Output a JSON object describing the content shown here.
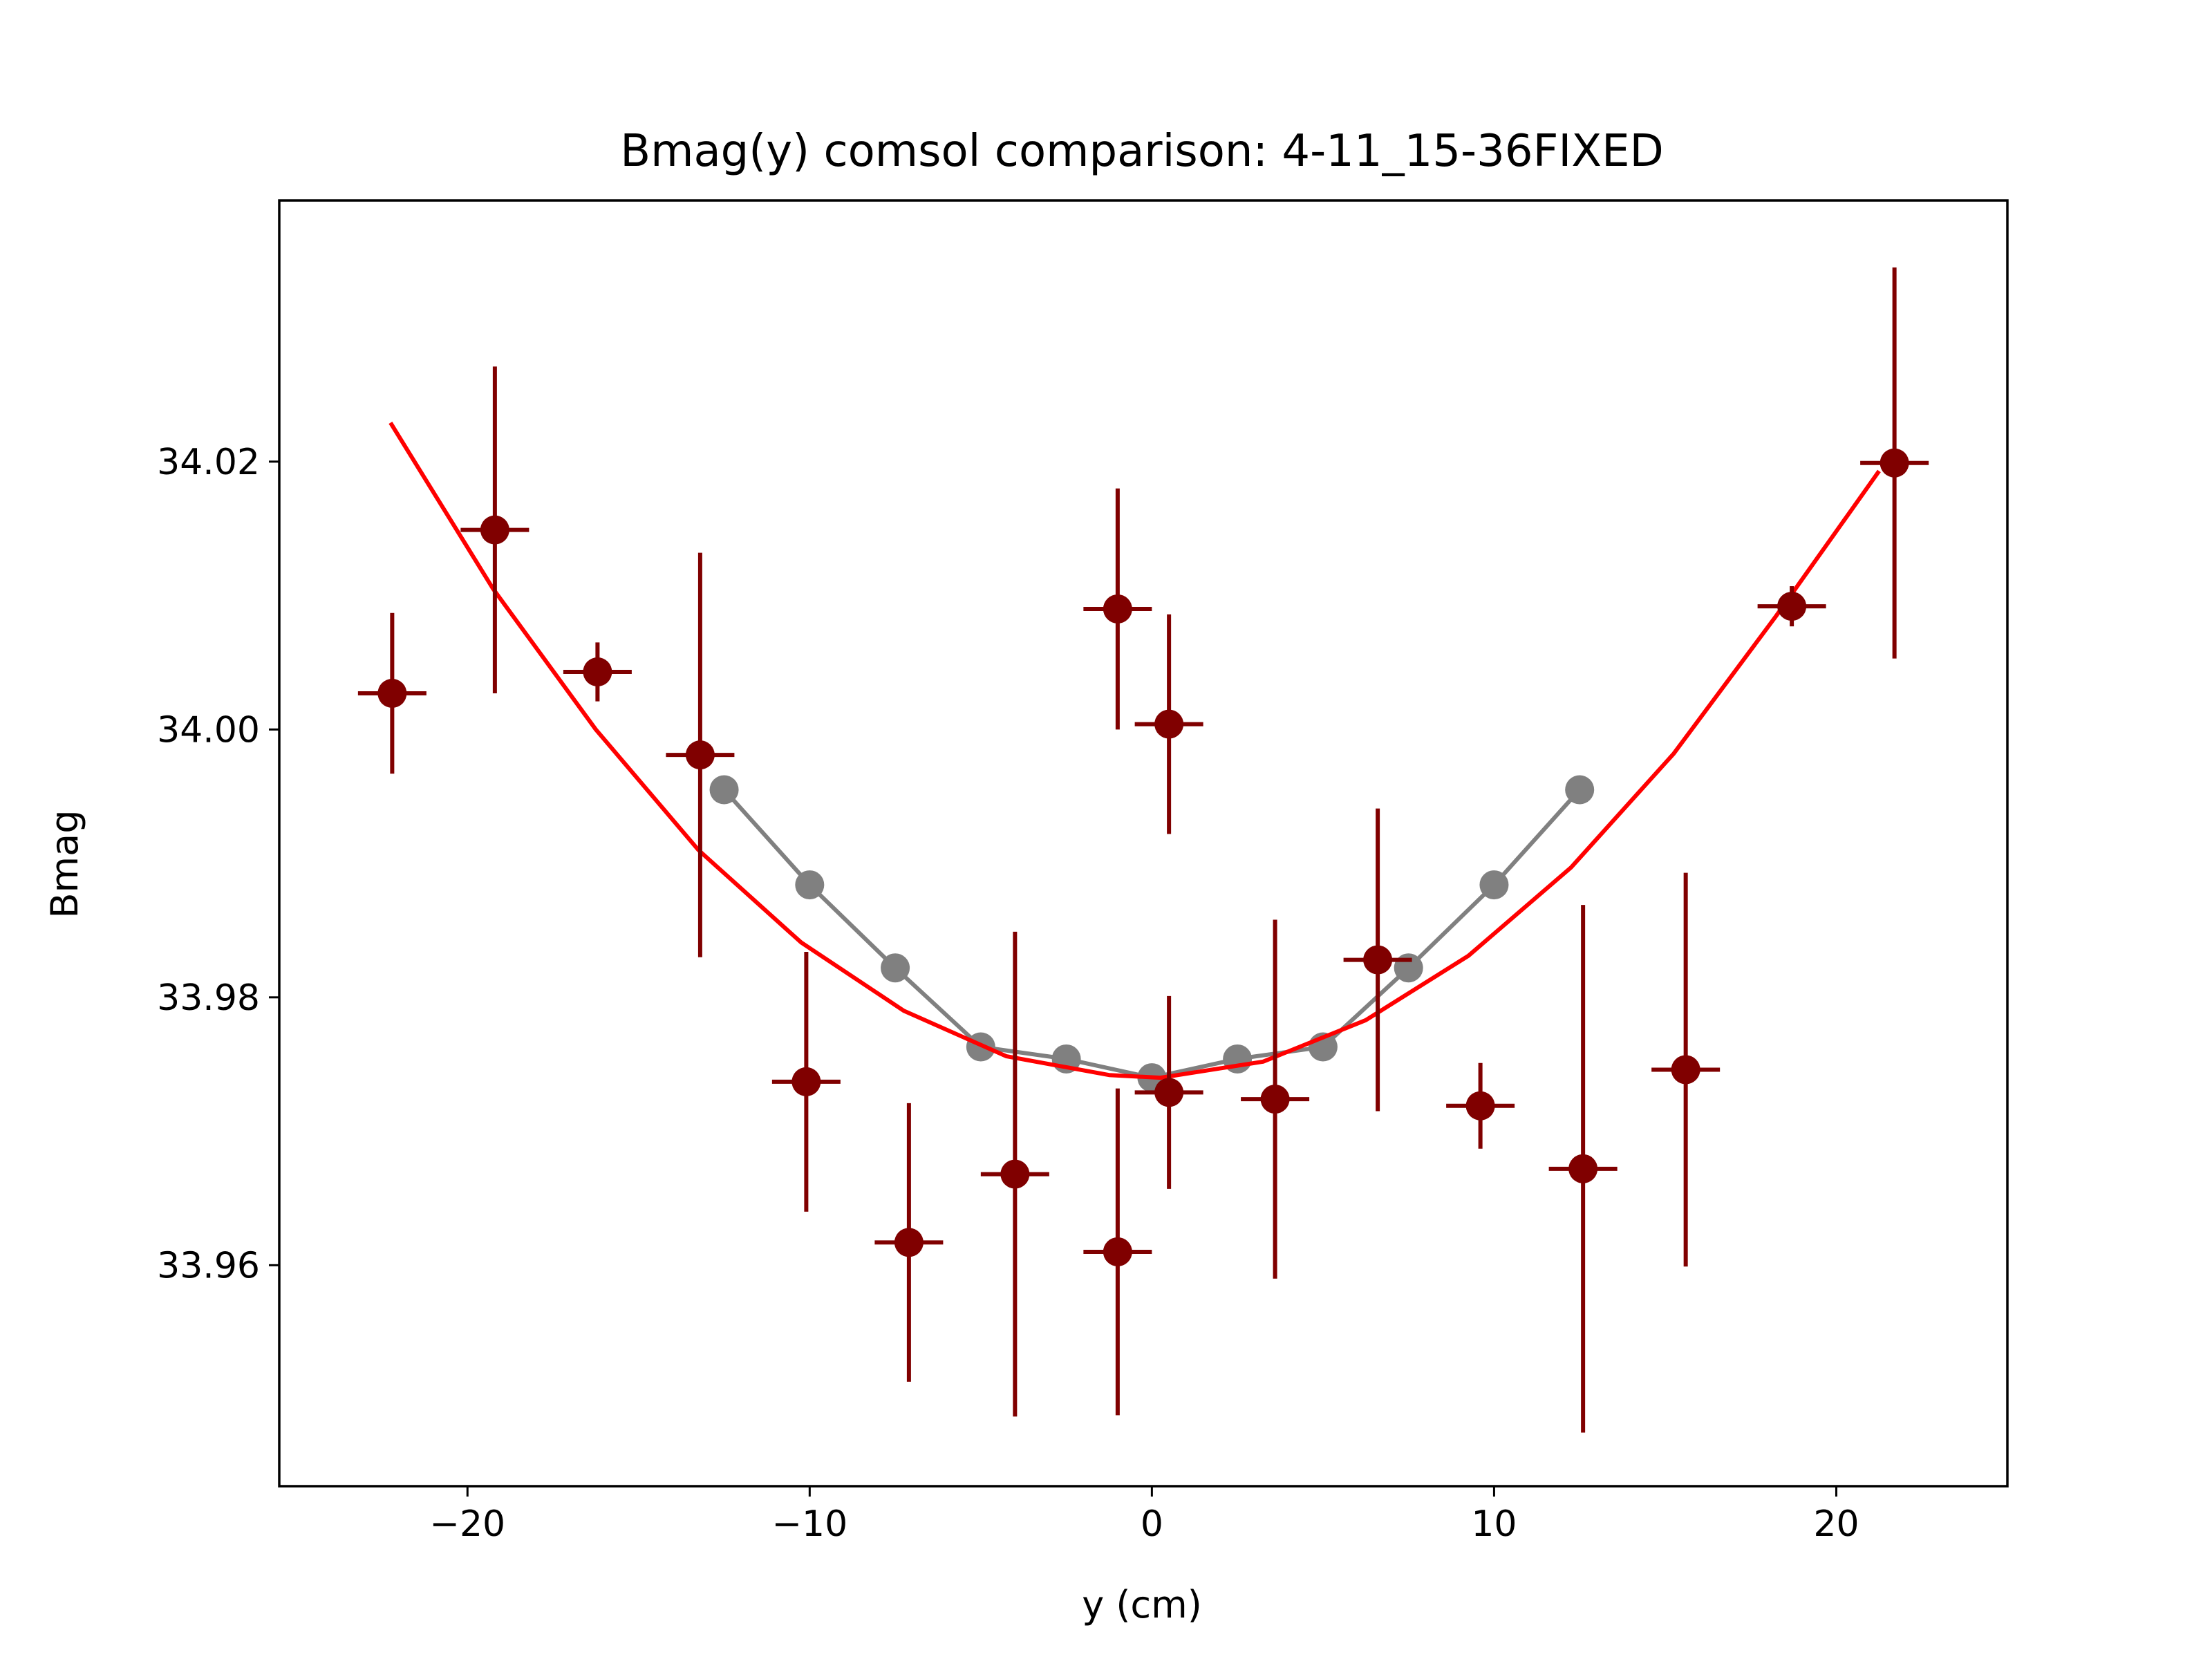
{
  "chart_data": {
    "type": "scatter",
    "title": "Bmag(y) comsol comparison: 4-11_15-36FIXED",
    "xlabel": "y (cm)",
    "ylabel": "Bmag",
    "xlim": [
      -25.5,
      25.0
    ],
    "ylim": [
      33.9435,
      34.0395
    ],
    "xticks": [
      -20,
      -10,
      0,
      10,
      20
    ],
    "xtick_labels": [
      "−20",
      "−10",
      "0",
      "10",
      "20"
    ],
    "yticks": [
      33.96,
      33.98,
      34.0,
      34.02
    ],
    "ytick_labels": [
      "33.96",
      "33.98",
      "34.00",
      "34.02"
    ],
    "grid": false,
    "legend": "none",
    "series": [
      {
        "kind": "line-markers",
        "color": "#808080",
        "x": [
          -12.5,
          -10.0,
          -7.5,
          -5.0,
          -2.5,
          0.0,
          2.5,
          5.0,
          7.5,
          10.0,
          12.5
        ],
        "y": [
          33.9955,
          33.9884,
          33.9822,
          33.9763,
          33.9754,
          33.974,
          33.9754,
          33.9763,
          33.9822,
          33.9884,
          33.9955
        ]
      },
      {
        "kind": "line",
        "color": "#ff0000",
        "x": [
          -22.25,
          -19.25,
          -16.25,
          -13.25,
          -10.25,
          -7.25,
          -4.25,
          -1.25,
          0.25,
          3.25,
          6.25,
          9.25,
          12.25,
          15.25,
          18.25,
          21.25
        ],
        "y": [
          34.0229,
          34.0105,
          34.0,
          33.991,
          33.9841,
          33.979,
          33.9756,
          33.9742,
          33.974,
          33.9752,
          33.9783,
          33.9831,
          33.9897,
          33.9982,
          34.0085,
          34.0193
        ]
      },
      {
        "kind": "errorbar",
        "color": "#800000",
        "x": [
          -22.2,
          -19.2,
          -16.2,
          -13.2,
          -10.1,
          -7.1,
          -4.0,
          -1.0,
          0.5,
          3.6,
          6.6,
          9.6,
          12.6,
          15.6,
          18.7,
          21.7
        ],
        "y": [
          34.0027,
          34.0149,
          34.0043,
          33.9981,
          33.9737,
          33.9617,
          33.9668,
          34.009,
          34.0004,
          33.9724,
          33.9828,
          33.9719,
          33.9672,
          33.9746,
          34.0092,
          34.0199
        ],
        "xerr": [
          1.0,
          1.0,
          1.0,
          1.0,
          1.0,
          1.0,
          1.0,
          1.0,
          1.0,
          1.0,
          1.0,
          1.0,
          1.0,
          1.0,
          1.0,
          1.0
        ],
        "yerr": [
          0.006,
          0.0122,
          0.0022,
          0.0151,
          0.0097,
          0.0104,
          0.0181,
          0.009,
          0.0082,
          0.0134,
          0.0113,
          0.0032,
          0.0197,
          0.0147,
          0.0015,
          0.0146
        ]
      },
      {
        "kind": "errorbar",
        "color": "#800000",
        "x": [
          -1.0,
          0.5
        ],
        "y": [
          33.961,
          33.9729
        ],
        "xerr": [
          1.0,
          1.0
        ],
        "yerr": [
          0.0122,
          0.0072
        ]
      }
    ]
  }
}
